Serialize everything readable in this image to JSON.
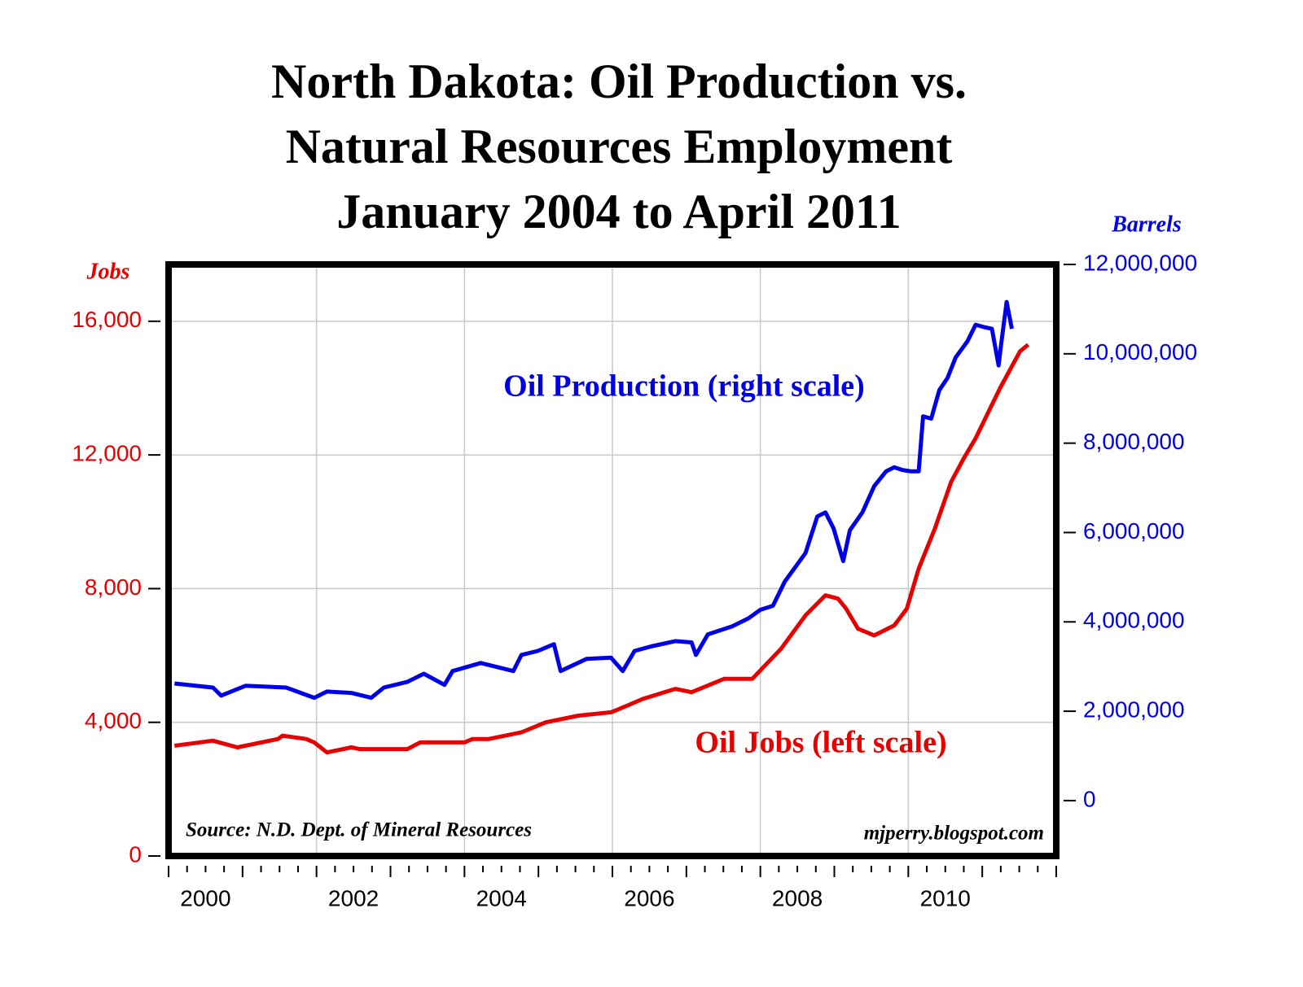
{
  "chart_data": {
    "type": "line",
    "title": [
      "North Dakota: Oil Production vs.",
      "Natural Resources Employment",
      "January 2004 to April 2011"
    ],
    "ylabel": "Jobs",
    "y2label": "Barrels",
    "annotations": [
      "Source: N.D. Dept. of Mineral Resources",
      "mjperry.blogspot.com"
    ],
    "xlim": [
      2000,
      2012
    ],
    "xticks": [
      {
        "value": 2000.5,
        "label": "2000"
      },
      {
        "value": 2002.5,
        "label": "2002"
      },
      {
        "value": 2004.5,
        "label": "2004"
      },
      {
        "value": 2006.5,
        "label": "2006"
      },
      {
        "value": 2008.5,
        "label": "2008"
      },
      {
        "value": 2010.5,
        "label": "2010"
      }
    ],
    "xgrid": [
      2002,
      2004,
      2006,
      2008,
      2010
    ],
    "ylim": [
      0,
      17700
    ],
    "yticks": [
      0,
      {
        "value": 4000,
        "label": "4,000"
      },
      {
        "value": 8000,
        "label": "8,000"
      },
      {
        "value": 12000,
        "label": "12,000"
      },
      {
        "value": 16000,
        "label": "16,000"
      }
    ],
    "y2lim": [
      -1240000,
      12000000
    ],
    "y2ticks": [
      0,
      {
        "value": 2000000,
        "label": "2,000,000"
      },
      {
        "value": 4000000,
        "label": "4,000,000"
      },
      {
        "value": 6000000,
        "label": "6,000,000"
      },
      {
        "value": 8000000,
        "label": "8,000,000"
      },
      {
        "value": 10000000,
        "label": "10,000,000"
      },
      {
        "value": 12000000,
        "label": "12,000,000"
      }
    ],
    "grid": true,
    "series": [
      {
        "name": "Oil Production (right scale)",
        "color": "#0000e6",
        "axis": "y2",
        "x": [
          2000.08,
          2000.6,
          2000.71,
          2001.04,
          2001.59,
          2001.97,
          2002.14,
          2002.47,
          2002.74,
          2002.91,
          2003.23,
          2003.45,
          2003.73,
          2003.84,
          2004.22,
          2004.66,
          2004.77,
          2004.99,
          2005.21,
          2005.3,
          2005.65,
          2005.98,
          2006.14,
          2006.3,
          2006.52,
          2006.85,
          2007.07,
          2007.13,
          2007.29,
          2007.62,
          2007.84,
          2008.0,
          2008.17,
          2008.33,
          2008.61,
          2008.77,
          2008.88,
          2008.99,
          2009.12,
          2009.21,
          2009.38,
          2009.54,
          2009.7,
          2009.81,
          2009.92,
          2010.03,
          2010.14,
          2010.2,
          2010.31,
          2010.42,
          2010.53,
          2010.64,
          2010.8,
          2010.91,
          2011.02,
          2011.13,
          2011.22,
          2011.26,
          2011.33,
          2011.4
        ],
        "values": [
          2620000,
          2530000,
          2350000,
          2570000,
          2530000,
          2300000,
          2440000,
          2410000,
          2300000,
          2530000,
          2660000,
          2840000,
          2590000,
          2900000,
          3080000,
          2900000,
          3260000,
          3350000,
          3500000,
          2900000,
          3170000,
          3200000,
          2900000,
          3350000,
          3450000,
          3570000,
          3540000,
          3260000,
          3720000,
          3900000,
          4080000,
          4270000,
          4360000,
          4900000,
          5540000,
          6360000,
          6450000,
          6090000,
          5360000,
          6050000,
          6450000,
          7040000,
          7370000,
          7460000,
          7400000,
          7370000,
          7370000,
          8600000,
          8550000,
          9190000,
          9460000,
          9920000,
          10280000,
          10650000,
          10600000,
          10560000,
          9740000,
          10280000,
          11160000,
          10560000
        ]
      },
      {
        "name": "Oil Jobs (left scale)",
        "color": "#e60000",
        "x": [
          2000.08,
          2000.6,
          2000.93,
          2001.48,
          2001.54,
          2001.86,
          2001.97,
          2002.14,
          2002.47,
          2002.58,
          2003.23,
          2003.4,
          2004.0,
          2004.11,
          2004.33,
          2004.77,
          2005.1,
          2005.54,
          2005.98,
          2006.2,
          2006.41,
          2006.85,
          2007.07,
          2007.51,
          2007.89,
          2008.28,
          2008.61,
          2008.88,
          2009.05,
          2009.16,
          2009.32,
          2009.54,
          2009.81,
          2009.98,
          2010.14,
          2010.36,
          2010.58,
          2010.75,
          2010.91,
          2011.24,
          2011.51,
          2011.62
        ],
        "values": [
          3300,
          3450,
          3250,
          3500,
          3600,
          3500,
          3400,
          3100,
          3250,
          3200,
          3200,
          3400,
          3400,
          3500,
          3500,
          3700,
          4000,
          4200,
          4300,
          4500,
          4700,
          5000,
          4900,
          5300,
          5300,
          6200,
          7200,
          7800,
          7700,
          7400,
          6800,
          6600,
          6900,
          7400,
          8600,
          9800,
          11200,
          11900,
          12500,
          14000,
          15100,
          15300
        ]
      }
    ]
  }
}
